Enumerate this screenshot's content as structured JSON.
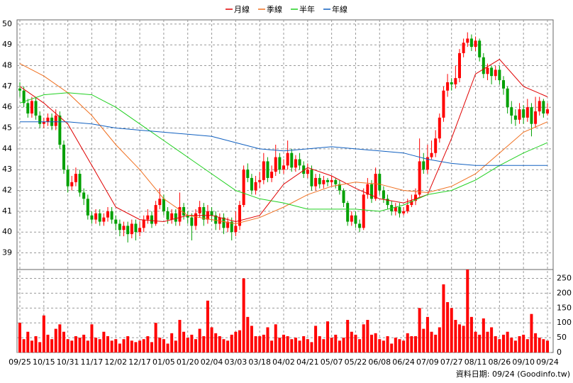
{
  "chart_data": {
    "type": "candlestick",
    "up_color": "#ff0000",
    "down_color": "#00a000",
    "grid": true,
    "categories": [
      "09/25",
      null,
      null,
      null,
      null,
      null,
      "10/15",
      null,
      null,
      null,
      null,
      null,
      "10/31",
      null,
      null,
      null,
      null,
      null,
      "11/17",
      null,
      null,
      null,
      null,
      null,
      "12/02",
      null,
      null,
      null,
      null,
      null,
      "12/17",
      null,
      null,
      null,
      null,
      null,
      "01/05",
      null,
      null,
      null,
      null,
      null,
      "01/20",
      null,
      null,
      null,
      null,
      null,
      "02/04",
      null,
      null,
      null,
      null,
      null,
      "03/03",
      null,
      null,
      null,
      null,
      null,
      "03/18",
      null,
      null,
      null,
      null,
      null,
      "04/02",
      null,
      null,
      null,
      null,
      null,
      "04/21",
      null,
      null,
      null,
      null,
      null,
      "05/07",
      null,
      null,
      null,
      null,
      null,
      "05/22",
      null,
      null,
      null,
      null,
      null,
      "06/08",
      null,
      null,
      null,
      null,
      null,
      "06/24",
      null,
      null,
      null,
      null,
      null,
      "07/09",
      null,
      null,
      null,
      null,
      null,
      "07/27",
      null,
      null,
      null,
      null,
      null,
      "08/11",
      null,
      null,
      null,
      null,
      null,
      "08/26",
      null,
      null,
      null,
      null,
      null,
      "09/10",
      null,
      null,
      null,
      null,
      null,
      "09/24"
    ],
    "open": [
      46.9,
      46.8,
      46.2,
      45.7,
      46.3,
      45.6,
      45.2,
      45.3,
      45.5,
      45.1,
      45.6,
      44.2,
      43.0,
      42.2,
      42.4,
      42.8,
      41.9,
      41.6,
      40.8,
      40.6,
      40.9,
      40.5,
      40.7,
      41.0,
      40.6,
      40.4,
      40.1,
      40.3,
      39.9,
      40.4,
      40.0,
      40.2,
      40.6,
      40.8,
      40.4,
      41.3,
      41.6,
      41.0,
      40.6,
      40.9,
      40.5,
      41.2,
      40.8,
      40.7,
      40.3,
      40.9,
      41.2,
      40.6,
      41.0,
      40.8,
      40.4,
      40.7,
      40.2,
      40.5,
      40.0,
      40.3,
      41.3,
      43.0,
      42.6,
      42.0,
      42.4,
      42.5,
      43.4,
      42.6,
      42.9,
      43.6,
      43.0,
      43.2,
      43.8,
      43.1,
      43.5,
      43.2,
      42.8,
      43.0,
      42.2,
      42.6,
      42.3,
      42.5,
      42.4,
      42.5,
      42.3,
      42.0,
      41.4,
      40.5,
      40.8,
      40.4,
      40.2,
      41.8,
      42.3,
      41.6,
      42.8,
      42.0,
      41.6,
      41.3,
      41.0,
      41.2,
      40.9,
      41.0,
      41.3,
      41.5,
      41.8,
      43.4,
      43.0,
      43.6,
      43.8,
      44.5,
      45.5,
      46.8,
      47.2,
      47.1,
      47.4,
      48.6,
      49.1,
      49.3,
      48.9,
      49.2,
      48.4,
      47.6,
      47.9,
      47.5,
      47.8,
      47.3,
      46.9,
      46.0,
      45.6,
      45.4,
      45.9,
      45.5,
      46.0,
      45.2,
      45.8,
      46.3,
      45.7
    ],
    "high": [
      47.2,
      47.0,
      46.4,
      46.5,
      46.5,
      45.8,
      45.5,
      45.7,
      45.7,
      45.9,
      45.8,
      44.4,
      43.2,
      42.7,
      43.1,
      43.0,
      42.1,
      41.8,
      41.0,
      41.1,
      41.1,
      40.9,
      41.2,
      41.2,
      40.8,
      40.6,
      40.5,
      40.5,
      40.6,
      40.6,
      40.5,
      40.8,
      41.1,
      41.0,
      41.5,
      42.1,
      41.8,
      41.2,
      41.1,
      41.1,
      41.9,
      41.4,
      41.0,
      40.9,
      41.1,
      41.5,
      41.4,
      41.3,
      41.2,
      41.0,
      40.9,
      40.9,
      40.7,
      40.7,
      41.0,
      41.5,
      43.2,
      43.3,
      42.8,
      42.7,
      42.9,
      43.8,
      43.6,
      43.2,
      44.2,
      43.8,
      43.5,
      44.4,
      44.0,
      43.7,
      43.8,
      43.4,
      43.3,
      43.2,
      42.8,
      42.8,
      42.7,
      42.6,
      42.7,
      42.6,
      42.5,
      42.1,
      41.5,
      41.0,
      41.0,
      40.6,
      42.1,
      42.6,
      42.5,
      43.1,
      43.0,
      42.2,
      41.8,
      41.5,
      41.4,
      41.4,
      41.2,
      41.6,
      41.8,
      42.1,
      44.5,
      43.8,
      44.2,
      44.4,
      44.9,
      45.7,
      47.0,
      47.6,
      47.4,
      48.0,
      48.8,
      49.3,
      49.6,
      49.5,
      49.4,
      49.3,
      48.6,
      48.1,
      48.0,
      48.0,
      48.0,
      47.5,
      47.0,
      46.3,
      45.9,
      46.2,
      46.1,
      46.4,
      46.2,
      46.5,
      46.5,
      46.4,
      46.2
    ],
    "low": [
      46.5,
      46.0,
      45.5,
      45.5,
      45.4,
      45.0,
      45.0,
      45.1,
      44.9,
      44.9,
      44.0,
      42.8,
      41.9,
      42.0,
      42.2,
      41.7,
      41.3,
      40.6,
      40.4,
      40.4,
      40.3,
      40.3,
      40.5,
      40.4,
      40.1,
      39.8,
      39.8,
      39.5,
      39.7,
      39.6,
      39.8,
      40.0,
      40.4,
      40.2,
      40.3,
      41.1,
      40.8,
      40.4,
      40.4,
      40.3,
      40.3,
      40.6,
      40.4,
      39.6,
      40.1,
      40.7,
      40.3,
      40.4,
      40.5,
      40.1,
      40.1,
      39.9,
      40.0,
      39.6,
      39.8,
      40.1,
      41.2,
      42.4,
      41.8,
      41.8,
      42.1,
      42.3,
      42.4,
      42.4,
      42.7,
      42.8,
      42.8,
      43.0,
      42.9,
      42.9,
      43.0,
      42.6,
      42.6,
      42.0,
      42.0,
      42.1,
      42.1,
      42.2,
      42.2,
      42.1,
      41.8,
      41.2,
      40.3,
      40.3,
      40.2,
      40.0,
      40.1,
      41.6,
      41.4,
      41.5,
      41.8,
      41.4,
      41.1,
      40.8,
      40.8,
      40.7,
      40.8,
      40.9,
      41.2,
      41.3,
      41.7,
      42.8,
      42.8,
      43.5,
      43.6,
      44.3,
      45.3,
      46.5,
      46.8,
      46.9,
      47.2,
      48.4,
      48.9,
      48.7,
      48.7,
      48.2,
      47.4,
      47.3,
      47.1,
      47.3,
      47.1,
      46.6,
      45.7,
      45.2,
      45.1,
      45.2,
      45.2,
      45.3,
      44.6,
      45.0,
      45.6,
      45.5,
      45.6
    ],
    "close": [
      46.8,
      46.2,
      45.7,
      46.3,
      45.6,
      45.2,
      45.3,
      45.5,
      45.1,
      45.6,
      44.2,
      43.0,
      42.2,
      42.4,
      42.8,
      41.9,
      41.6,
      40.8,
      40.6,
      40.9,
      40.5,
      40.7,
      41.0,
      40.6,
      40.4,
      40.1,
      40.3,
      39.9,
      40.4,
      40.0,
      40.2,
      40.6,
      40.8,
      40.4,
      41.3,
      41.6,
      41.0,
      40.6,
      40.9,
      40.5,
      41.2,
      40.8,
      40.7,
      40.3,
      40.9,
      41.2,
      40.6,
      41.0,
      40.8,
      40.4,
      40.7,
      40.2,
      40.5,
      40.0,
      40.3,
      41.3,
      43.0,
      42.6,
      42.0,
      42.4,
      42.5,
      43.4,
      42.6,
      42.9,
      43.6,
      43.0,
      43.2,
      43.8,
      43.1,
      43.5,
      43.2,
      42.8,
      43.0,
      42.2,
      42.6,
      42.3,
      42.5,
      42.4,
      42.5,
      42.3,
      42.0,
      41.4,
      40.5,
      40.8,
      40.4,
      40.2,
      41.8,
      42.3,
      41.6,
      42.8,
      42.0,
      41.6,
      41.3,
      41.0,
      41.2,
      40.9,
      41.0,
      41.3,
      41.5,
      41.8,
      43.4,
      43.0,
      43.6,
      43.8,
      44.5,
      45.5,
      46.8,
      47.2,
      47.1,
      47.4,
      48.6,
      49.1,
      49.3,
      48.9,
      49.2,
      48.4,
      47.6,
      47.9,
      47.5,
      47.8,
      47.3,
      46.9,
      46.0,
      45.6,
      45.4,
      45.9,
      45.5,
      46.0,
      45.2,
      45.8,
      46.3,
      45.7,
      45.9
    ],
    "ylim": [
      38.2,
      50.2
    ],
    "yticks": [
      39,
      40,
      41,
      42,
      43,
      44,
      45,
      46,
      47,
      48,
      49,
      50
    ],
    "series": [
      {
        "name": "月線",
        "color": "#e00000",
        "x": [
          0,
          6,
          12,
          18,
          24,
          30,
          36,
          42,
          48,
          54,
          60,
          66,
          72,
          78,
          84,
          90,
          96,
          102,
          108,
          114,
          120,
          126,
          132
        ],
        "values": [
          47.0,
          46.2,
          45.2,
          43.2,
          41.2,
          40.6,
          40.5,
          40.8,
          40.8,
          40.5,
          40.8,
          42.3,
          43.1,
          42.7,
          42.1,
          41.6,
          41.4,
          41.8,
          44.5,
          47.6,
          48.3,
          47.0,
          46.5
        ]
      },
      {
        "name": "季線",
        "color": "#f07020",
        "x": [
          0,
          6,
          12,
          18,
          24,
          30,
          36,
          42,
          48,
          54,
          60,
          66,
          72,
          78,
          84,
          90,
          96,
          102,
          108,
          114,
          120,
          126,
          132
        ],
        "values": [
          48.1,
          47.5,
          46.7,
          45.6,
          44.2,
          43.0,
          41.6,
          40.8,
          40.6,
          40.4,
          40.7,
          41.2,
          41.8,
          42.2,
          42.4,
          42.3,
          42.0,
          41.9,
          42.2,
          42.8,
          43.8,
          44.8,
          45.3
        ]
      },
      {
        "name": "半年",
        "color": "#20d020",
        "x": [
          0,
          6,
          12,
          18,
          24,
          30,
          36,
          42,
          48,
          54,
          60,
          66,
          72,
          78,
          84,
          90,
          96,
          102,
          108,
          114,
          120,
          126,
          132
        ],
        "values": [
          46.2,
          46.6,
          46.7,
          46.6,
          46.0,
          45.2,
          44.4,
          43.6,
          42.8,
          42.0,
          41.6,
          41.4,
          41.1,
          41.1,
          41.1,
          41.0,
          41.3,
          41.8,
          42.0,
          42.5,
          43.2,
          43.8,
          44.3
        ]
      },
      {
        "name": "年線",
        "color": "#1060c0",
        "x": [
          0,
          6,
          12,
          18,
          24,
          30,
          36,
          42,
          48,
          54,
          60,
          66,
          72,
          78,
          84,
          90,
          96,
          102,
          108,
          114,
          120,
          126,
          132
        ],
        "values": [
          45.3,
          45.3,
          45.3,
          45.2,
          45.0,
          44.9,
          44.8,
          44.7,
          44.6,
          44.3,
          44.0,
          43.9,
          44.0,
          44.1,
          44.0,
          43.9,
          43.8,
          43.5,
          43.3,
          43.2,
          43.2,
          43.2,
          43.2
        ]
      }
    ],
    "volume": {
      "color": "#ff0000",
      "ylim": [
        0,
        280
      ],
      "yticks": [
        0,
        50,
        100,
        150,
        200,
        250
      ],
      "values": [
        100,
        45,
        70,
        40,
        55,
        35,
        125,
        60,
        45,
        80,
        95,
        70,
        45,
        40,
        55,
        50,
        60,
        40,
        95,
        50,
        45,
        70,
        55,
        40,
        45,
        30,
        45,
        55,
        40,
        35,
        40,
        45,
        55,
        35,
        100,
        50,
        45,
        30,
        65,
        40,
        110,
        70,
        50,
        60,
        45,
        80,
        55,
        175,
        85,
        65,
        55,
        45,
        40,
        60,
        70,
        75,
        250,
        120,
        90,
        55,
        55,
        60,
        85,
        40,
        95,
        50,
        60,
        55,
        45,
        50,
        40,
        55,
        45,
        35,
        90,
        55,
        45,
        105,
        50,
        60,
        40,
        50,
        110,
        70,
        60,
        45,
        95,
        110,
        60,
        65,
        45,
        40,
        55,
        30,
        50,
        45,
        40,
        65,
        55,
        55,
        150,
        80,
        120,
        70,
        60,
        85,
        230,
        170,
        150,
        110,
        95,
        90,
        280,
        120,
        70,
        60,
        115,
        70,
        85,
        55,
        45,
        60,
        70,
        50,
        40,
        55,
        60,
        45,
        130,
        65,
        50,
        45,
        40
      ]
    },
    "source": "資料日期: 09/24  (Goodinfo.tw)"
  }
}
